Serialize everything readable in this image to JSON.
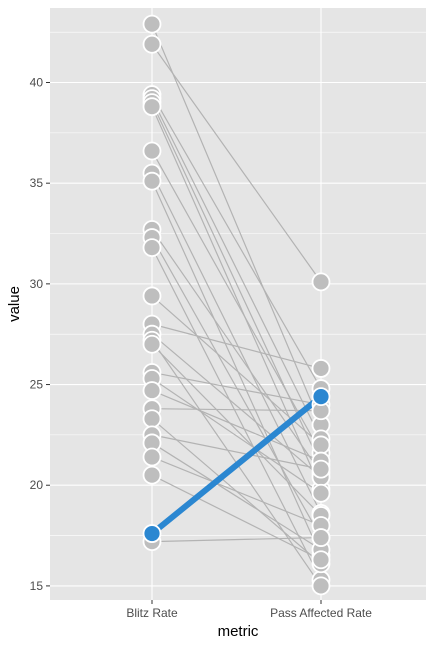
{
  "chart_data": {
    "type": "line",
    "subtype": "slopegraph",
    "title": "",
    "xlabel": "metric",
    "ylabel": "value",
    "categories": [
      "Blitz Rate",
      "Pass Affected Rate"
    ],
    "ylim": [
      14.3,
      43.7
    ],
    "yticks": [
      15,
      20,
      25,
      30,
      35,
      40
    ],
    "grid": true,
    "legend": "none",
    "colors": {
      "panel": "#e5e5e5",
      "grid": "#ffffff",
      "line": "#b3b3b3",
      "point": "#bebebe",
      "highlight": "#2b87d1"
    },
    "series": [
      {
        "values": [
          42.9,
          23.0
        ]
      },
      {
        "values": [
          41.9,
          30.1
        ]
      },
      {
        "values": [
          39.4,
          24.8
        ]
      },
      {
        "values": [
          39.2,
          22.3
        ]
      },
      {
        "values": [
          39.0,
          21.0
        ]
      },
      {
        "values": [
          38.8,
          19.8
        ]
      },
      {
        "values": [
          36.6,
          21.6
        ]
      },
      {
        "values": [
          35.5,
          18.6
        ]
      },
      {
        "values": [
          35.1,
          16.5
        ]
      },
      {
        "values": [
          32.7,
          20.6
        ]
      },
      {
        "values": [
          32.3,
          17.4
        ]
      },
      {
        "values": [
          31.8,
          15.3
        ]
      },
      {
        "values": [
          29.4,
          22.0
        ]
      },
      {
        "values": [
          28.0,
          25.8
        ]
      },
      {
        "values": [
          27.5,
          20.4
        ]
      },
      {
        "values": [
          27.2,
          15.0
        ]
      },
      {
        "values": [
          27.0,
          18.5
        ]
      },
      {
        "values": [
          25.6,
          24.0
        ]
      },
      {
        "values": [
          25.3,
          19.6
        ]
      },
      {
        "values": [
          24.7,
          21.2
        ]
      },
      {
        "values": [
          23.8,
          23.7
        ]
      },
      {
        "values": [
          23.3,
          16.1
        ]
      },
      {
        "values": [
          22.5,
          20.8
        ]
      },
      {
        "values": [
          22.1,
          16.8
        ]
      },
      {
        "values": [
          21.4,
          18.0
        ]
      },
      {
        "values": [
          20.5,
          16.3
        ]
      },
      {
        "values": [
          17.2,
          17.4
        ]
      },
      {
        "values": [
          17.6,
          24.4
        ],
        "highlight": true
      }
    ]
  }
}
